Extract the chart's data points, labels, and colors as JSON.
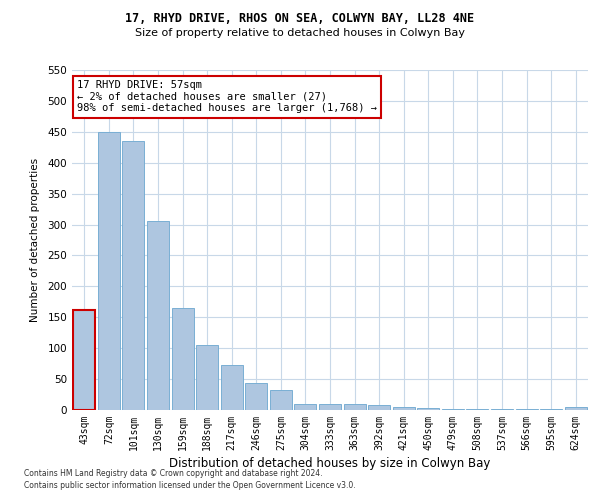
{
  "title1": "17, RHYD DRIVE, RHOS ON SEA, COLWYN BAY, LL28 4NE",
  "title2": "Size of property relative to detached houses in Colwyn Bay",
  "xlabel": "Distribution of detached houses by size in Colwyn Bay",
  "ylabel": "Number of detached properties",
  "categories": [
    "43sqm",
    "72sqm",
    "101sqm",
    "130sqm",
    "159sqm",
    "188sqm",
    "217sqm",
    "246sqm",
    "275sqm",
    "304sqm",
    "333sqm",
    "363sqm",
    "392sqm",
    "421sqm",
    "450sqm",
    "479sqm",
    "508sqm",
    "537sqm",
    "566sqm",
    "595sqm",
    "624sqm"
  ],
  "values": [
    162,
    450,
    435,
    305,
    165,
    105,
    73,
    43,
    33,
    10,
    9,
    9,
    8,
    5,
    3,
    2,
    2,
    2,
    2,
    2,
    5
  ],
  "bar_color": "#aec6e0",
  "bar_edge_color": "#7aafd4",
  "highlight_edge_color": "#cc0000",
  "ylim": [
    0,
    550
  ],
  "yticks": [
    0,
    50,
    100,
    150,
    200,
    250,
    300,
    350,
    400,
    450,
    500,
    550
  ],
  "annotation_line1": "17 RHYD DRIVE: 57sqm",
  "annotation_line2": "← 2% of detached houses are smaller (27)",
  "annotation_line3": "98% of semi-detached houses are larger (1,768) →",
  "annotation_box_color": "#ffffff",
  "annotation_box_edge": "#cc0000",
  "footer1": "Contains HM Land Registry data © Crown copyright and database right 2024.",
  "footer2": "Contains public sector information licensed under the Open Government Licence v3.0.",
  "bg_color": "#ffffff",
  "grid_color": "#c8d8e8",
  "title1_fontsize": 8.5,
  "title2_fontsize": 8.0,
  "xlabel_fontsize": 8.5,
  "ylabel_fontsize": 7.5,
  "tick_fontsize": 7.0,
  "ytick_fontsize": 7.5,
  "ann_fontsize": 7.5,
  "footer_fontsize": 5.5
}
